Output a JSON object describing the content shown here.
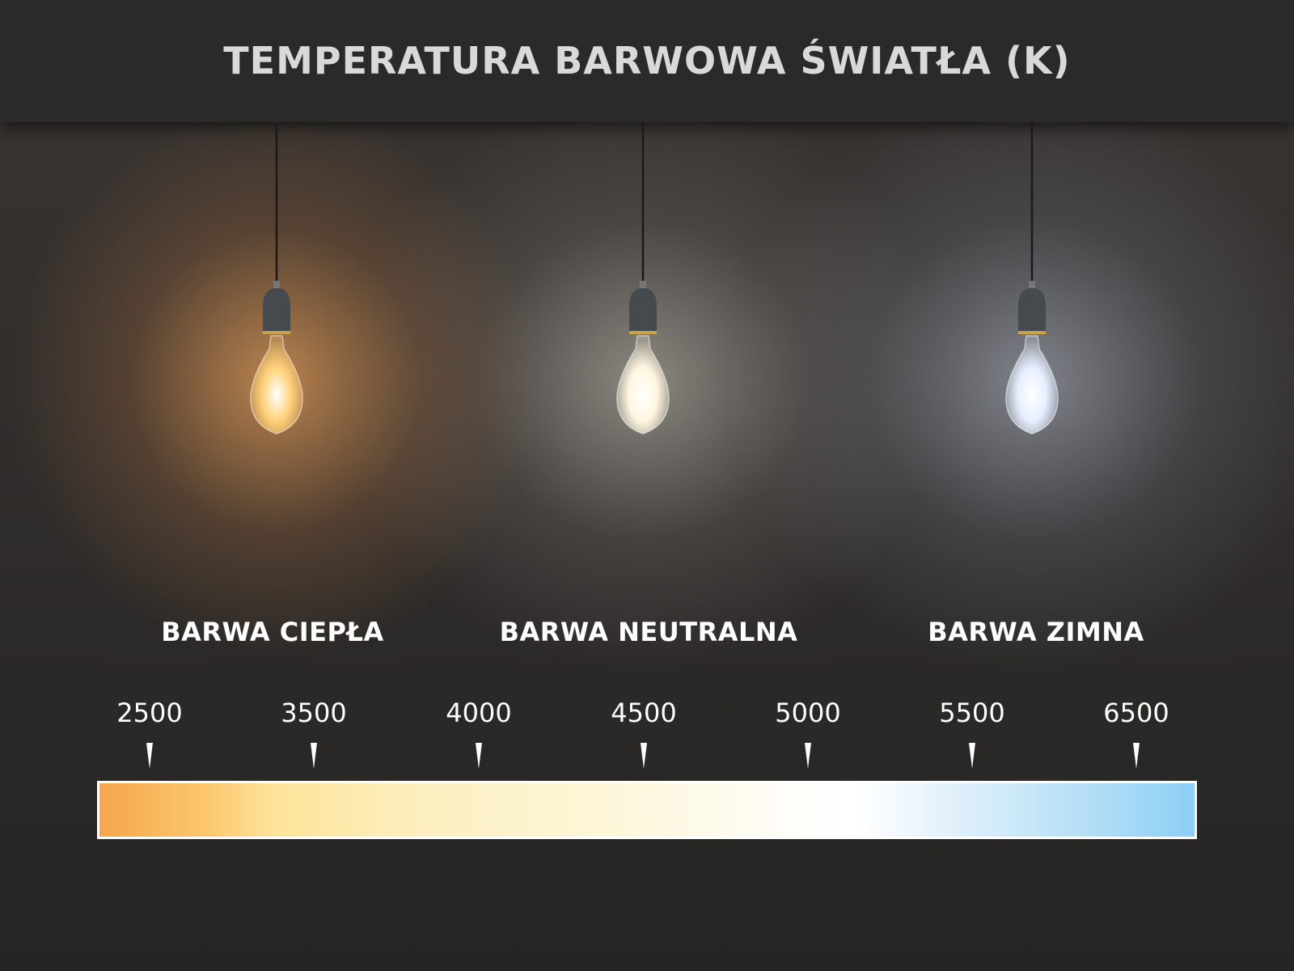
{
  "title": "TEMPERATURA BARWOWA ŚWIATŁA (K)",
  "bulbs": [
    {
      "label": "BARWA CIEPŁA",
      "color": "#ffd27a"
    },
    {
      "label": "BARWA NEUTRALNA",
      "color": "#fff6e0"
    },
    {
      "label": "BARWA ZIMNA",
      "color": "#e6eeff"
    }
  ],
  "scale": {
    "values": [
      "2500",
      "3500",
      "4000",
      "4500",
      "5000",
      "5500",
      "6500"
    ],
    "gradient_colors": [
      "#f5a64a",
      "#fde49b",
      "#fdf8df",
      "#ffffff",
      "#8ccff5"
    ]
  }
}
